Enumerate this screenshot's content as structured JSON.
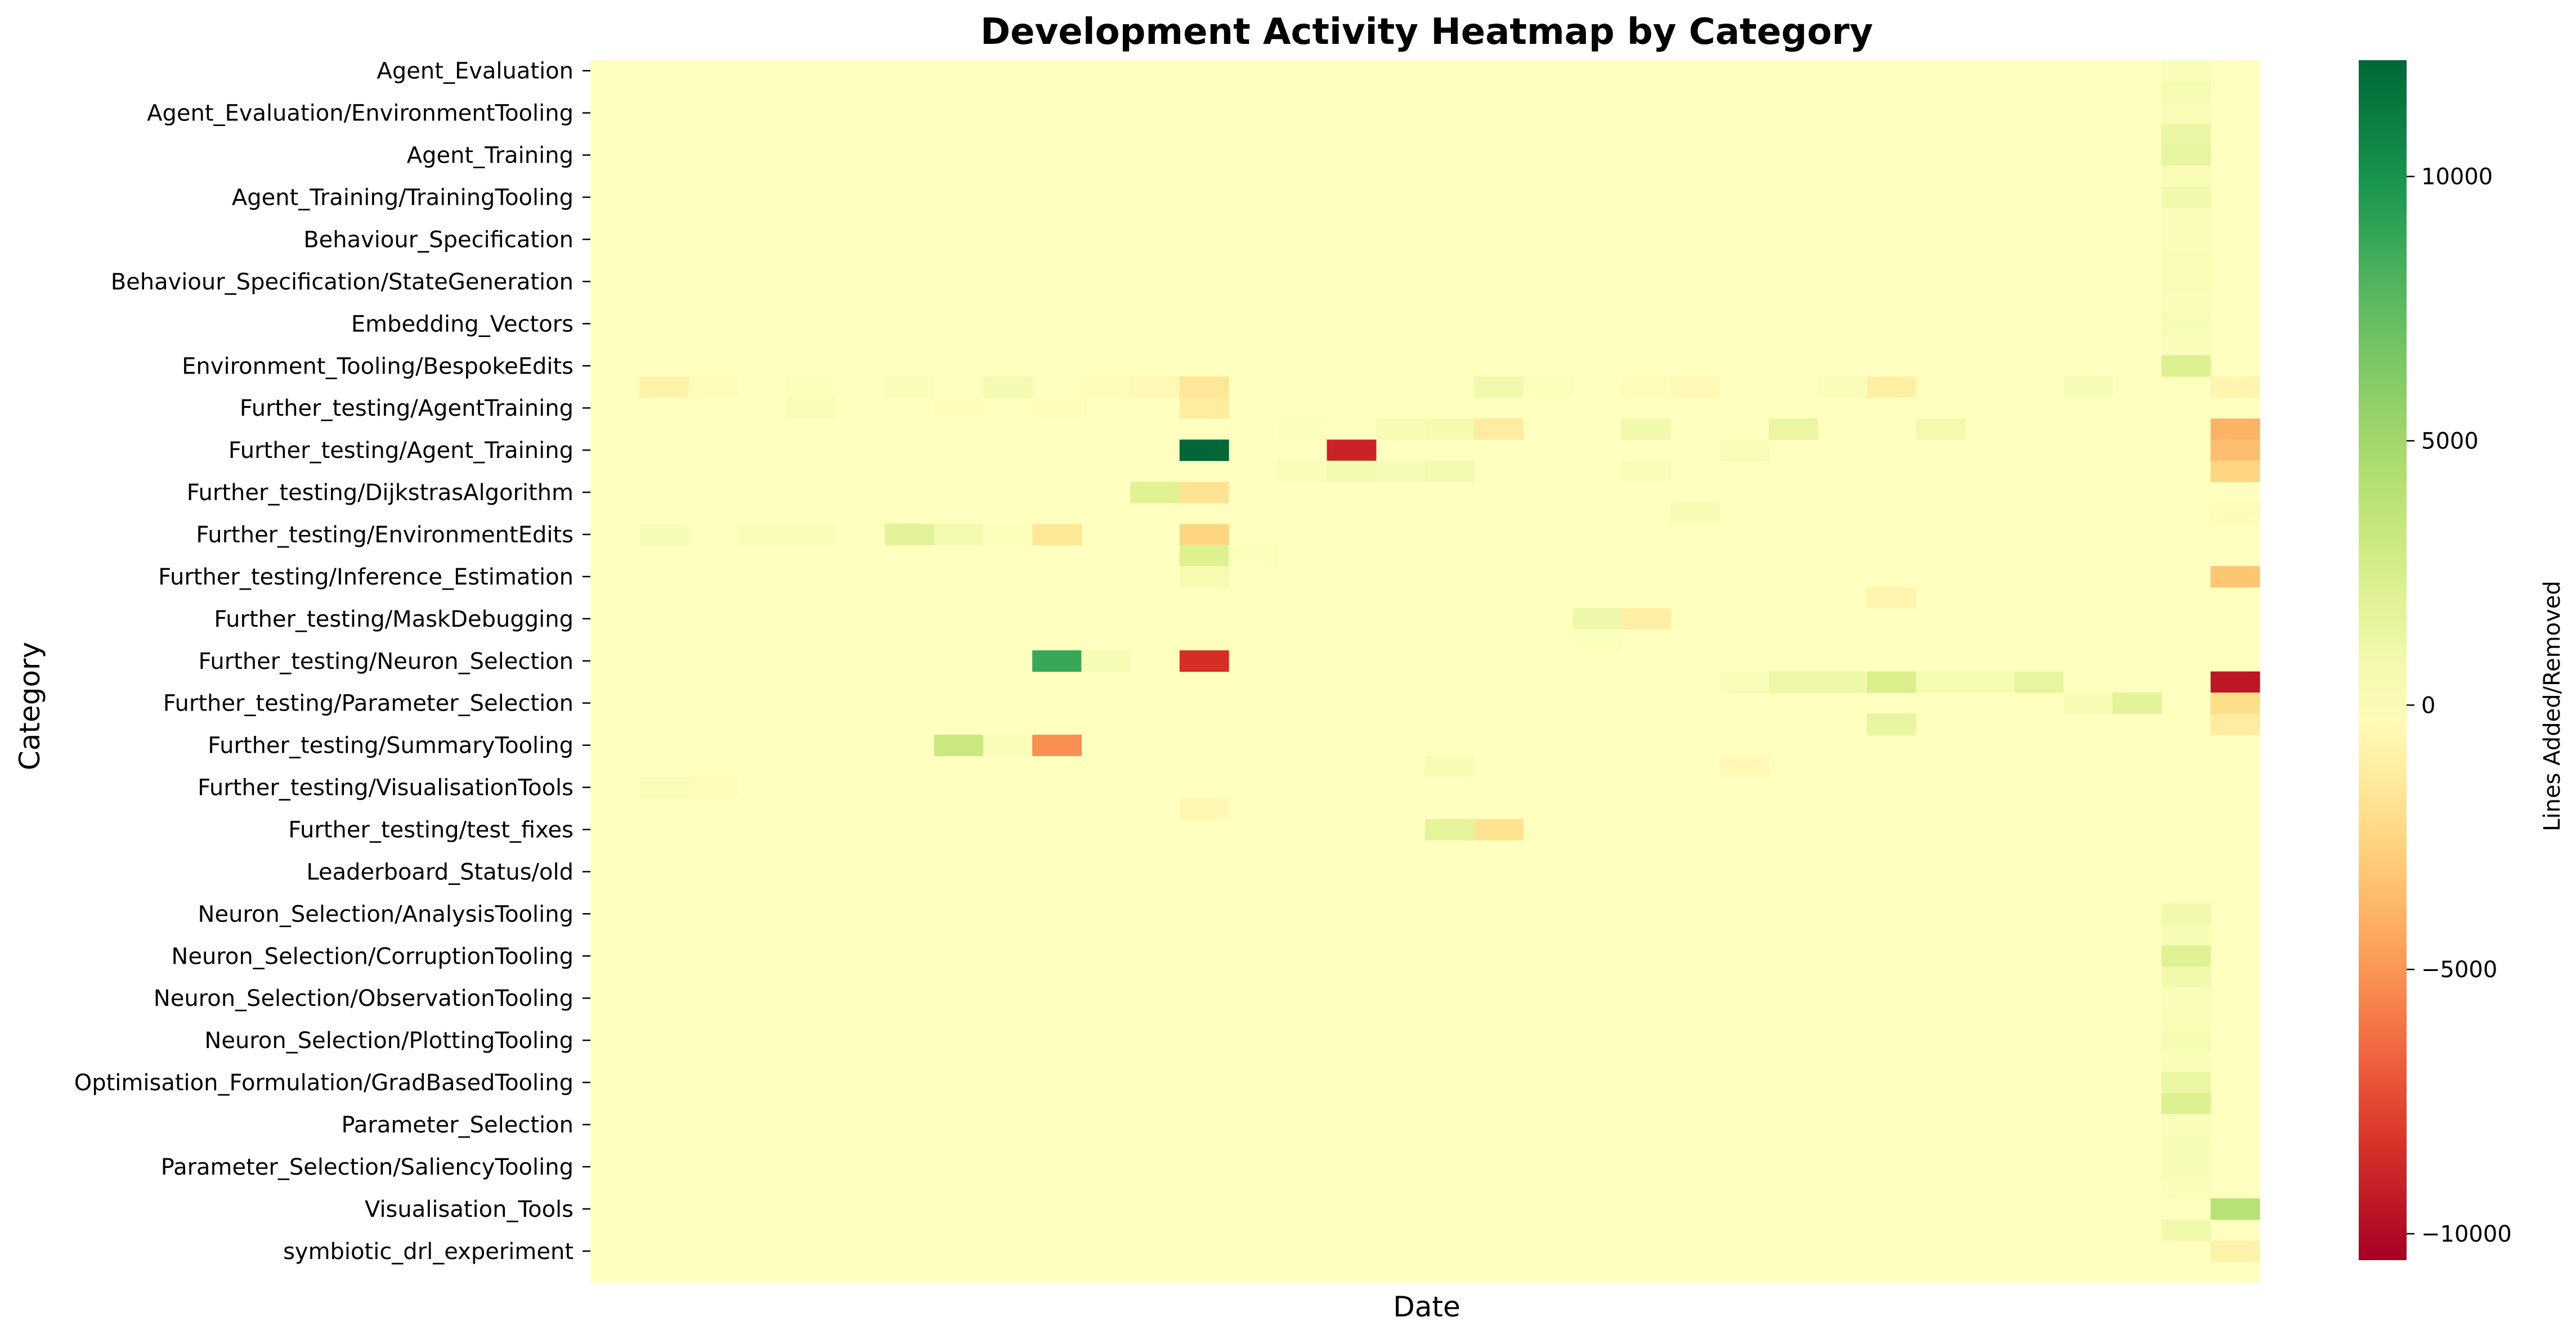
{
  "chart_data": {
    "type": "heatmap",
    "title": "Development Activity Heatmap by Category",
    "xlabel": "Date",
    "ylabel": "Category",
    "colorbar_label": "Lines Added/Removed",
    "colormap": "RdYlGn",
    "vmin": -10500,
    "vmax": 12200,
    "colorbar_ticks": [
      {
        "value": 10000,
        "label": "10000"
      },
      {
        "value": 5000,
        "label": "5000"
      },
      {
        "value": 0,
        "label": "0"
      },
      {
        "value": -5000,
        "label": "−5000"
      },
      {
        "value": -10000,
        "label": "−10000"
      }
    ],
    "grid": false,
    "columns": 34,
    "categories": [
      "Agent_Evaluation",
      "",
      "Agent_Evaluation/EnvironmentTooling",
      "",
      "Agent_Training",
      "",
      "Agent_Training/TrainingTooling",
      "",
      "Behaviour_Specification",
      "",
      "Behaviour_Specification/StateGeneration",
      "",
      "Embedding_Vectors",
      "",
      "Environment_Tooling/BespokeEdits",
      "",
      "Further_testing/AgentTraining",
      "",
      "Further_testing/Agent_Training",
      "",
      "Further_testing/DijkstrasAlgorithm",
      "",
      "Further_testing/EnvironmentEdits",
      "",
      "Further_testing/Inference_Estimation",
      "",
      "Further_testing/MaskDebugging",
      "",
      "Further_testing/Neuron_Selection",
      "",
      "Further_testing/Parameter_Selection",
      "",
      "Further_testing/SummaryTooling",
      "",
      "Further_testing/VisualisationTools",
      "",
      "Further_testing/test_fixes",
      "",
      "Leaderboard_Status/old",
      "",
      "Neuron_Selection/AnalysisTooling",
      "",
      "Neuron_Selection/CorruptionTooling",
      "",
      "Neuron_Selection/ObservationTooling",
      "",
      "Neuron_Selection/PlottingTooling",
      "",
      "Optimisation_Formulation/GradBasedTooling",
      "",
      "Parameter_Selection",
      "",
      "Parameter_Selection/SaliencyTooling",
      "",
      "Visualisation_Tools",
      "",
      "symbiotic_drl_experiment",
      ""
    ],
    "cells": [
      {
        "row": 0,
        "col": 32,
        "value": 300
      },
      {
        "row": 1,
        "col": 32,
        "value": 600
      },
      {
        "row": 2,
        "col": 32,
        "value": 400
      },
      {
        "row": 3,
        "col": 32,
        "value": 1200
      },
      {
        "row": 4,
        "col": 32,
        "value": 1500
      },
      {
        "row": 5,
        "col": 32,
        "value": 400
      },
      {
        "row": 6,
        "col": 32,
        "value": 900
      },
      {
        "row": 7,
        "col": 32,
        "value": 300
      },
      {
        "row": 8,
        "col": 32,
        "value": 300
      },
      {
        "row": 9,
        "col": 32,
        "value": 400
      },
      {
        "row": 10,
        "col": 32,
        "value": 400
      },
      {
        "row": 11,
        "col": 32,
        "value": 300
      },
      {
        "row": 12,
        "col": 32,
        "value": 500
      },
      {
        "row": 13,
        "col": 32,
        "value": 300
      },
      {
        "row": 14,
        "col": 32,
        "value": 2200
      },
      {
        "row": 15,
        "col": 1,
        "value": -900
      },
      {
        "row": 15,
        "col": 2,
        "value": -200
      },
      {
        "row": 15,
        "col": 4,
        "value": 200
      },
      {
        "row": 15,
        "col": 6,
        "value": 300
      },
      {
        "row": 15,
        "col": 8,
        "value": 700
      },
      {
        "row": 15,
        "col": 10,
        "value": -300
      },
      {
        "row": 15,
        "col": 11,
        "value": -400
      },
      {
        "row": 15,
        "col": 12,
        "value": -1600
      },
      {
        "row": 15,
        "col": 18,
        "value": 900
      },
      {
        "row": 15,
        "col": 19,
        "value": 200
      },
      {
        "row": 15,
        "col": 21,
        "value": -200
      },
      {
        "row": 15,
        "col": 22,
        "value": -400
      },
      {
        "row": 15,
        "col": 25,
        "value": 300
      },
      {
        "row": 15,
        "col": 26,
        "value": -1000
      },
      {
        "row": 15,
        "col": 30,
        "value": 500
      },
      {
        "row": 15,
        "col": 33,
        "value": -700
      },
      {
        "row": 16,
        "col": 4,
        "value": 400
      },
      {
        "row": 16,
        "col": 7,
        "value": -200
      },
      {
        "row": 16,
        "col": 9,
        "value": -300
      },
      {
        "row": 16,
        "col": 12,
        "value": -1300
      },
      {
        "row": 17,
        "col": 14,
        "value": 200
      },
      {
        "row": 17,
        "col": 16,
        "value": 500
      },
      {
        "row": 17,
        "col": 17,
        "value": 700
      },
      {
        "row": 17,
        "col": 18,
        "value": -1200
      },
      {
        "row": 17,
        "col": 21,
        "value": 900
      },
      {
        "row": 17,
        "col": 24,
        "value": 1300
      },
      {
        "row": 17,
        "col": 27,
        "value": 800
      },
      {
        "row": 17,
        "col": 33,
        "value": -4000
      },
      {
        "row": 18,
        "col": 12,
        "value": 12200
      },
      {
        "row": 18,
        "col": 15,
        "value": -9000
      },
      {
        "row": 18,
        "col": 23,
        "value": 400
      },
      {
        "row": 18,
        "col": 33,
        "value": -3500
      },
      {
        "row": 19,
        "col": 14,
        "value": 300
      },
      {
        "row": 19,
        "col": 15,
        "value": 700
      },
      {
        "row": 19,
        "col": 16,
        "value": 500
      },
      {
        "row": 19,
        "col": 17,
        "value": 800
      },
      {
        "row": 19,
        "col": 21,
        "value": 300
      },
      {
        "row": 19,
        "col": 33,
        "value": -2500
      },
      {
        "row": 20,
        "col": 11,
        "value": 2000
      },
      {
        "row": 20,
        "col": 12,
        "value": -1800
      },
      {
        "row": 21,
        "col": 22,
        "value": 500
      },
      {
        "row": 21,
        "col": 33,
        "value": -300
      },
      {
        "row": 22,
        "col": 1,
        "value": 500
      },
      {
        "row": 22,
        "col": 3,
        "value": 400
      },
      {
        "row": 22,
        "col": 4,
        "value": 300
      },
      {
        "row": 22,
        "col": 6,
        "value": 1800
      },
      {
        "row": 22,
        "col": 7,
        "value": 700
      },
      {
        "row": 22,
        "col": 8,
        "value": 200
      },
      {
        "row": 22,
        "col": 9,
        "value": -1600
      },
      {
        "row": 22,
        "col": 12,
        "value": -2500
      },
      {
        "row": 23,
        "col": 12,
        "value": 2200
      },
      {
        "row": 23,
        "col": 13,
        "value": 200
      },
      {
        "row": 24,
        "col": 12,
        "value": 600
      },
      {
        "row": 24,
        "col": 33,
        "value": -3200
      },
      {
        "row": 25,
        "col": 26,
        "value": -700
      },
      {
        "row": 26,
        "col": 20,
        "value": 1000
      },
      {
        "row": 26,
        "col": 21,
        "value": -1000
      },
      {
        "row": 27,
        "col": 20,
        "value": 200
      },
      {
        "row": 28,
        "col": 9,
        "value": 8800
      },
      {
        "row": 28,
        "col": 10,
        "value": 500
      },
      {
        "row": 28,
        "col": 12,
        "value": -8500
      },
      {
        "row": 29,
        "col": 23,
        "value": 300
      },
      {
        "row": 29,
        "col": 24,
        "value": 1100
      },
      {
        "row": 29,
        "col": 25,
        "value": 1100
      },
      {
        "row": 29,
        "col": 26,
        "value": 2400
      },
      {
        "row": 29,
        "col": 27,
        "value": 600
      },
      {
        "row": 29,
        "col": 28,
        "value": 600
      },
      {
        "row": 29,
        "col": 29,
        "value": 1500
      },
      {
        "row": 29,
        "col": 33,
        "value": -9500
      },
      {
        "row": 30,
        "col": 30,
        "value": 500
      },
      {
        "row": 30,
        "col": 31,
        "value": 1800
      },
      {
        "row": 30,
        "col": 33,
        "value": -2200
      },
      {
        "row": 31,
        "col": 26,
        "value": 1400
      },
      {
        "row": 31,
        "col": 33,
        "value": -1200
      },
      {
        "row": 32,
        "col": 7,
        "value": 3200
      },
      {
        "row": 32,
        "col": 8,
        "value": 400
      },
      {
        "row": 32,
        "col": 9,
        "value": -5200
      },
      {
        "row": 33,
        "col": 17,
        "value": 500
      },
      {
        "row": 33,
        "col": 23,
        "value": -400
      },
      {
        "row": 34,
        "col": 1,
        "value": 300
      },
      {
        "row": 34,
        "col": 2,
        "value": -200
      },
      {
        "row": 35,
        "col": 12,
        "value": -500
      },
      {
        "row": 36,
        "col": 17,
        "value": 1700
      },
      {
        "row": 36,
        "col": 18,
        "value": -1800
      },
      {
        "row": 40,
        "col": 32,
        "value": 900
      },
      {
        "row": 41,
        "col": 32,
        "value": 500
      },
      {
        "row": 42,
        "col": 32,
        "value": 2000
      },
      {
        "row": 43,
        "col": 32,
        "value": 900
      },
      {
        "row": 44,
        "col": 32,
        "value": 300
      },
      {
        "row": 45,
        "col": 32,
        "value": 400
      },
      {
        "row": 46,
        "col": 32,
        "value": 600
      },
      {
        "row": 47,
        "col": 32,
        "value": 300
      },
      {
        "row": 48,
        "col": 32,
        "value": 1300
      },
      {
        "row": 49,
        "col": 32,
        "value": 2100
      },
      {
        "row": 50,
        "col": 32,
        "value": 300
      },
      {
        "row": 51,
        "col": 32,
        "value": 500
      },
      {
        "row": 52,
        "col": 32,
        "value": 500
      },
      {
        "row": 53,
        "col": 32,
        "value": 300
      },
      {
        "row": 54,
        "col": 33,
        "value": 4000
      },
      {
        "row": 55,
        "col": 32,
        "value": 900
      },
      {
        "row": 56,
        "col": 33,
        "value": -800
      }
    ]
  }
}
